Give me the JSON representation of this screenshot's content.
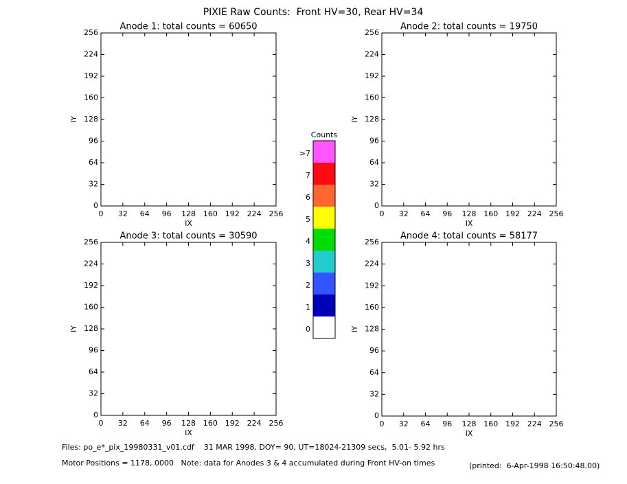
{
  "title": "PIXIE Raw Counts:  Front HV=30, Rear HV=34",
  "chart_data": [
    {
      "type": "heatmap",
      "title": "Anode 1: total counts = 60650",
      "xlabel": "IX",
      "ylabel": "IY",
      "xlim": [
        0,
        256
      ],
      "ylim": [
        0,
        256
      ],
      "xticks": [
        0,
        32,
        64,
        96,
        128,
        160,
        192,
        224,
        256
      ],
      "yticks": [
        0,
        32,
        64,
        96,
        128,
        160,
        192,
        224,
        256
      ]
    },
    {
      "type": "heatmap",
      "title": "Anode 2: total counts = 19750",
      "xlabel": "IX",
      "ylabel": "IY",
      "xlim": [
        0,
        256
      ],
      "ylim": [
        0,
        256
      ],
      "xticks": [
        0,
        32,
        64,
        96,
        128,
        160,
        192,
        224,
        256
      ],
      "yticks": [
        0,
        32,
        64,
        96,
        128,
        160,
        192,
        224,
        256
      ]
    },
    {
      "type": "heatmap",
      "title": "Anode 3: total counts = 30590",
      "xlabel": "IX",
      "ylabel": "IY",
      "xlim": [
        0,
        256
      ],
      "ylim": [
        0,
        256
      ],
      "xticks": [
        0,
        32,
        64,
        96,
        128,
        160,
        192,
        224,
        256
      ],
      "yticks": [
        0,
        32,
        64,
        96,
        128,
        160,
        192,
        224,
        256
      ]
    },
    {
      "type": "heatmap",
      "title": "Anode 4: total counts = 58177",
      "xlabel": "IX",
      "ylabel": "IY",
      "xlim": [
        0,
        256
      ],
      "ylim": [
        0,
        256
      ],
      "xticks": [
        0,
        32,
        64,
        96,
        128,
        160,
        192,
        224,
        256
      ],
      "yticks": [
        0,
        32,
        64,
        96,
        128,
        160,
        192,
        224,
        256
      ]
    }
  ],
  "colorbar": {
    "title": "Counts",
    "labels": [
      ">7",
      7,
      6,
      5,
      4,
      3,
      2,
      1,
      0
    ],
    "colors": [
      "#ff55ff",
      "#ff0a14",
      "#ff6633",
      "#ffff00",
      "#00dd00",
      "#22cccc",
      "#3355ff",
      "#0000bb",
      "#ffffff"
    ]
  },
  "footer": {
    "files": "Files: po_e*_pix_19980331_v01.cdf    31 MAR 1998, DOY= 90, UT=18024-21309 secs,  5.01- 5.92 hrs",
    "motor": "Motor Positions = 1178, 0000   Note: data for Anodes 3 & 4 accumulated during Front HV-on times",
    "printed": "(printed:  6-Apr-1998 16:50:48.00)"
  }
}
